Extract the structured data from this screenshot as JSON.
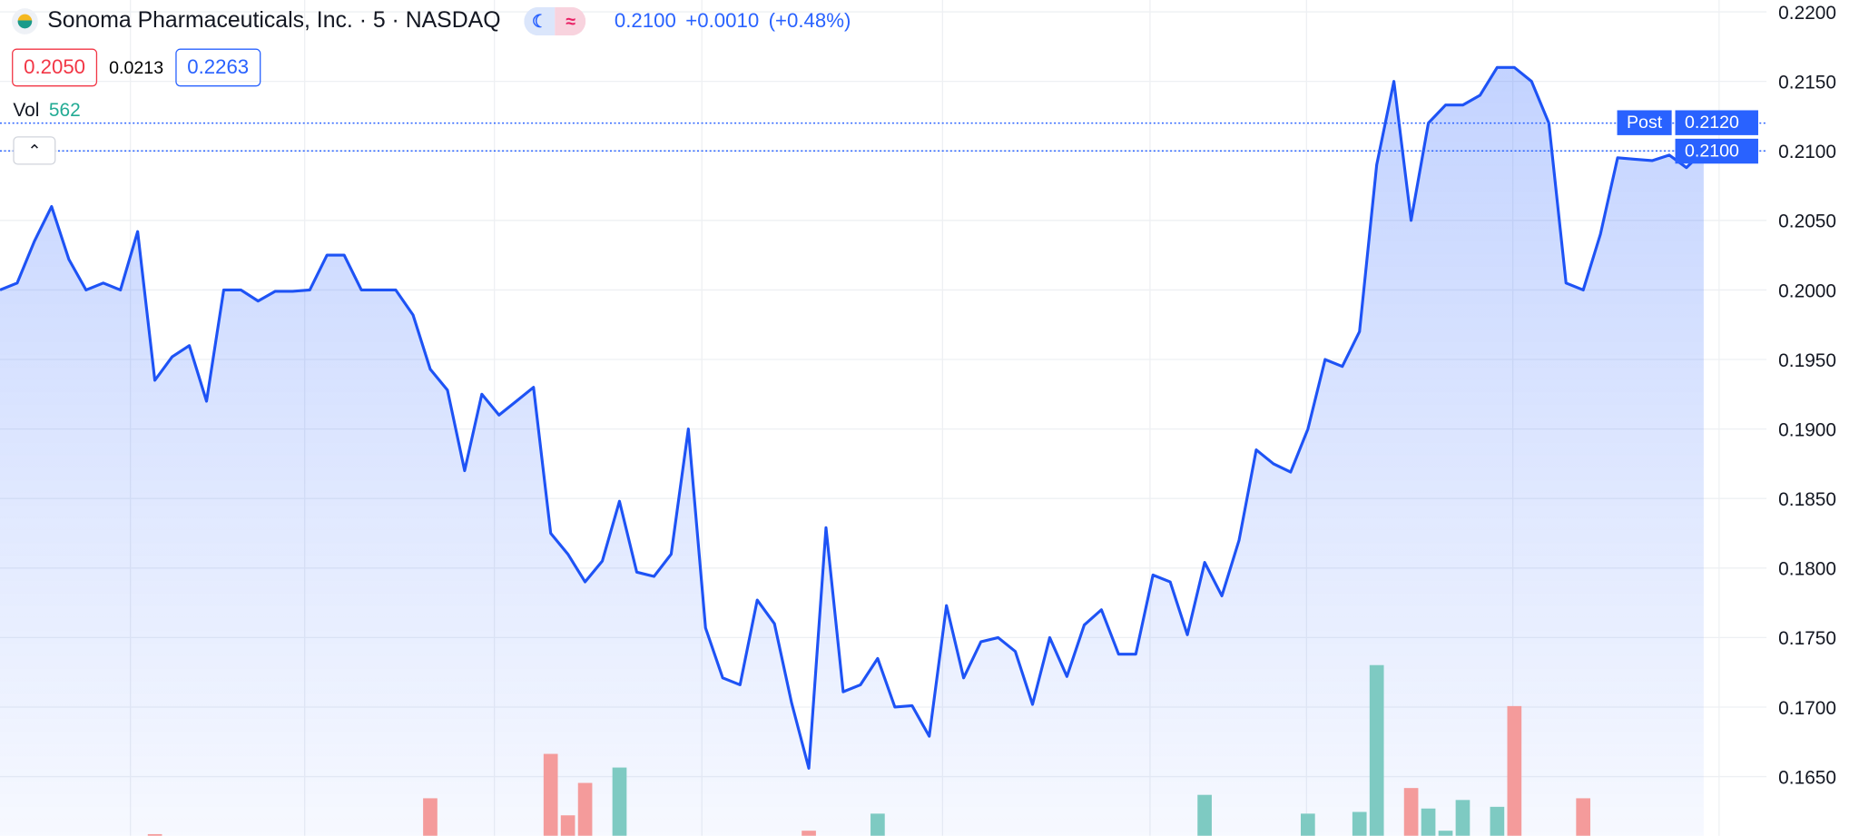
{
  "header": {
    "title": "Sonoma Pharmaceuticals, Inc. · 5 · NASDAQ",
    "price": "0.2100",
    "change": "+0.0010",
    "change_pct": "(+0.48%)",
    "bid": "0.2050",
    "spread": "0.0213",
    "ask": "0.2263",
    "vol_label": "Vol",
    "vol_value": "562",
    "icons": [
      "company-logo",
      "moon-icon",
      "approx-icon",
      "chevron-up-icon"
    ]
  },
  "labels": {
    "post": "Post",
    "post_price": "0.2120",
    "last_price": "0.2100"
  },
  "colors": {
    "line": "#1e53f5",
    "up": "#7ecac2",
    "down": "#f49b9b",
    "accent": "#2962ff"
  },
  "chart_data": {
    "type": "area",
    "ylim": [
      0.1625,
      0.22
    ],
    "yticks": [
      "0.2200",
      "0.2150",
      "0.2100",
      "0.2050",
      "0.2000",
      "0.1950",
      "0.1900",
      "0.1850",
      "0.1800",
      "0.1750",
      "0.1700",
      "0.1650"
    ],
    "grid": true,
    "series": [
      {
        "values": [
          0.2,
          0.2005,
          0.2035,
          0.206,
          0.2022,
          0.2,
          0.2005,
          0.2,
          0.2042,
          0.1935,
          0.1952,
          0.196,
          0.192,
          0.2,
          0.2,
          0.1992,
          0.1999,
          0.1999,
          0.2,
          0.2025,
          0.2025,
          0.2,
          0.2,
          0.2,
          0.1982,
          0.1943,
          0.1928,
          0.187,
          0.1925,
          0.191,
          0.192,
          0.193,
          0.1825,
          0.181,
          0.179,
          0.1805,
          0.1848,
          0.1797,
          0.1794,
          0.181,
          0.19,
          0.1757,
          0.1721,
          0.1716,
          0.1777,
          0.176,
          0.1703,
          0.1656,
          0.1829,
          0.1711,
          0.1716,
          0.1735,
          0.17,
          0.1701,
          0.1679,
          0.1773,
          0.1721,
          0.1747,
          0.175,
          0.174,
          0.1702,
          0.175,
          0.1722,
          0.1759,
          0.177,
          0.1738,
          0.1738,
          0.1795,
          0.179,
          0.1752,
          0.1804,
          0.178,
          0.182,
          0.1885,
          0.1875,
          0.1869,
          0.19,
          0.195,
          0.1945,
          0.197,
          0.209,
          0.215,
          0.205,
          0.212,
          0.2133,
          0.2133,
          0.214,
          0.216,
          0.216,
          0.215,
          0.212,
          0.2005,
          0.2,
          0.204,
          0.2095,
          0.2094,
          0.2093,
          0.2097,
          0.2088,
          0.21
        ]
      }
    ],
    "volume": [
      {
        "i": 9,
        "v": 1,
        "dir": "down"
      },
      {
        "i": 25,
        "v": 22,
        "dir": "down"
      },
      {
        "i": 32,
        "v": 48,
        "dir": "down"
      },
      {
        "i": 33,
        "v": 12,
        "dir": "down"
      },
      {
        "i": 34,
        "v": 31,
        "dir": "down"
      },
      {
        "i": 36,
        "v": 40,
        "dir": "up"
      },
      {
        "i": 47,
        "v": 3,
        "dir": "down"
      },
      {
        "i": 51,
        "v": 13,
        "dir": "up"
      },
      {
        "i": 70,
        "v": 24,
        "dir": "up"
      },
      {
        "i": 76,
        "v": 13,
        "dir": "up"
      },
      {
        "i": 79,
        "v": 14,
        "dir": "up"
      },
      {
        "i": 80,
        "v": 100,
        "dir": "up"
      },
      {
        "i": 82,
        "v": 28,
        "dir": "down"
      },
      {
        "i": 83,
        "v": 16,
        "dir": "up"
      },
      {
        "i": 84,
        "v": 3,
        "dir": "up"
      },
      {
        "i": 85,
        "v": 21,
        "dir": "up"
      },
      {
        "i": 87,
        "v": 17,
        "dir": "up"
      },
      {
        "i": 88,
        "v": 76,
        "dir": "down"
      },
      {
        "i": 92,
        "v": 22,
        "dir": "down"
      }
    ]
  }
}
